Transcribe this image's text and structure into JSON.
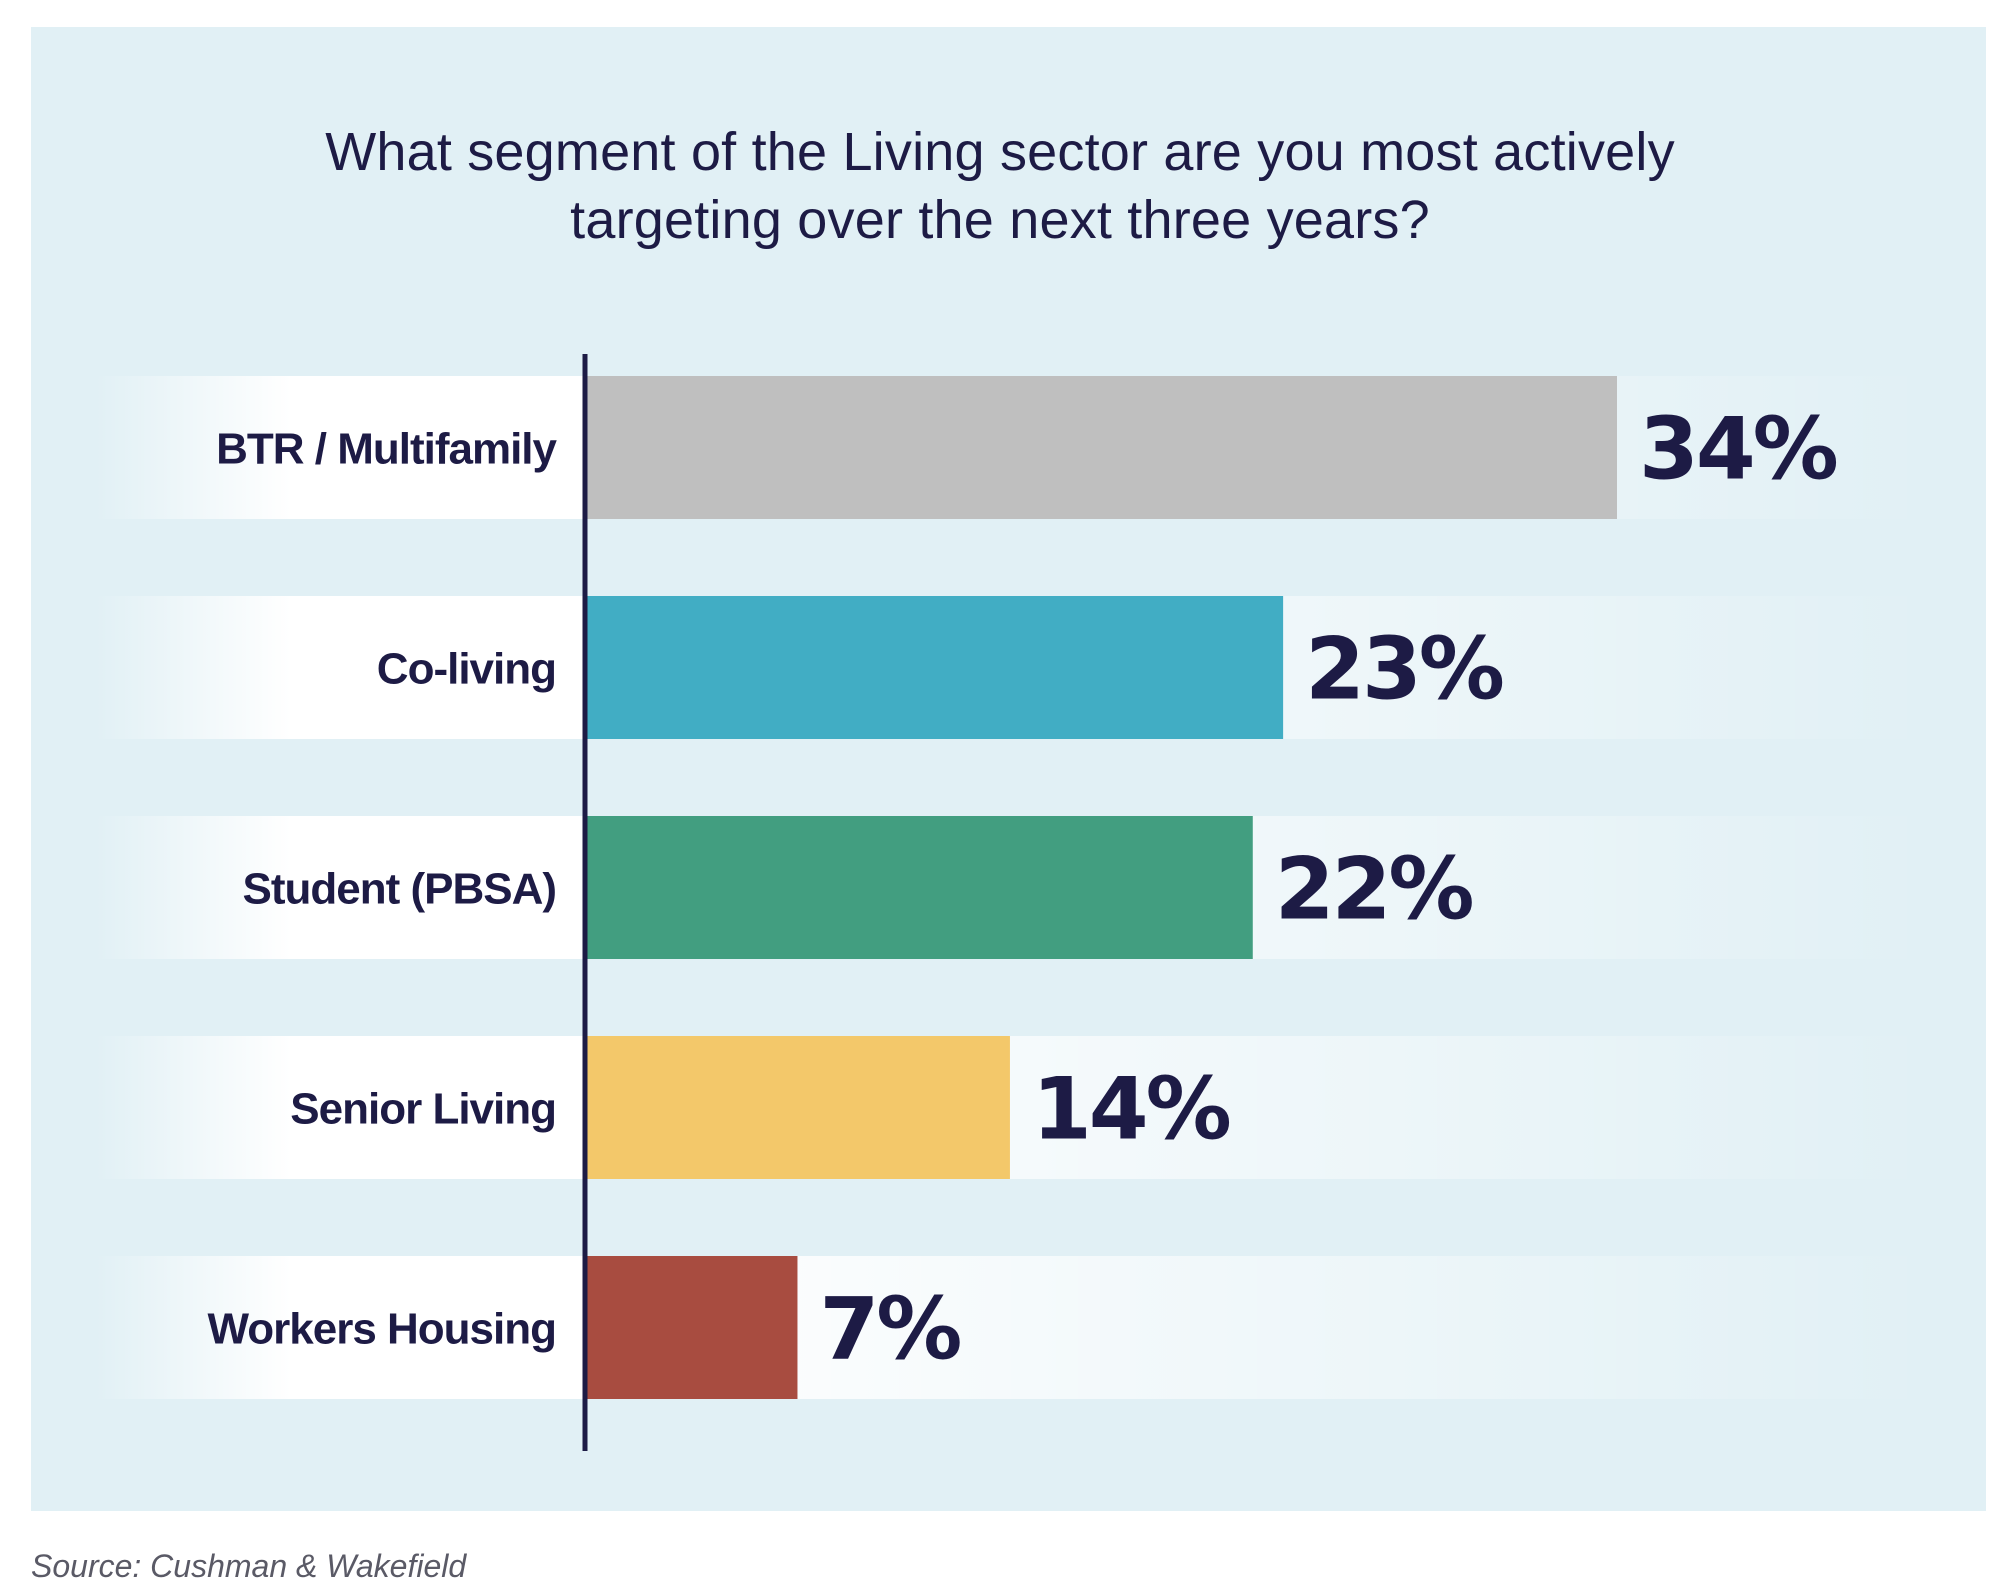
{
  "title_lines": [
    "What segment of the Living sector are you most actively",
    "targeting over the next three years?"
  ],
  "source": "Source: Cushman & Wakefield",
  "chart_data": {
    "type": "bar",
    "orientation": "horizontal",
    "title": "What segment of the Living sector are you most actively targeting over the next three years?",
    "categories": [
      "BTR / Multifamily",
      "Co-living",
      "Student (PBSA)",
      "Senior Living",
      "Workers Housing"
    ],
    "values": [
      34,
      23,
      22,
      14,
      7
    ],
    "value_labels": [
      "34%",
      "23%",
      "22%",
      "14%",
      "7%"
    ],
    "colors": [
      "#bfbfbf",
      "#41adc4",
      "#429e80",
      "#f3c86a",
      "#a84c40"
    ],
    "xlim": [
      0,
      34
    ],
    "unit": "%",
    "grid": false,
    "legend": "none"
  },
  "colors": {
    "panel_background": "#e1f0f5",
    "text": "#1d1b45",
    "axis": "#1d1b45"
  }
}
